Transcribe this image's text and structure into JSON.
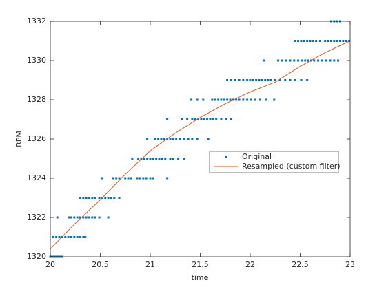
{
  "chart_data": {
    "type": "scatter",
    "xlabel": "time",
    "ylabel": "RPM",
    "xlim": [
      20,
      23
    ],
    "ylim": [
      1320,
      1332
    ],
    "xticks": [
      20,
      20.5,
      21,
      21.5,
      22,
      22.5,
      23
    ],
    "yticks": [
      1320,
      1322,
      1324,
      1326,
      1328,
      1330,
      1332
    ],
    "legend": "east",
    "series": [
      {
        "name": "Original",
        "type": "scatter",
        "color": "#0072BD",
        "x": [
          20.0,
          20.02,
          20.04,
          20.06,
          20.08,
          20.1,
          20.12,
          20.03,
          20.06,
          20.09,
          20.12,
          20.15,
          20.18,
          20.21,
          20.24,
          20.27,
          20.3,
          20.33,
          20.35,
          20.07,
          20.19,
          20.21,
          20.24,
          20.27,
          20.3,
          20.33,
          20.36,
          20.39,
          20.42,
          20.45,
          20.49,
          20.58,
          20.3,
          20.33,
          20.36,
          20.39,
          20.42,
          20.45,
          20.49,
          20.52,
          20.55,
          20.58,
          20.61,
          20.64,
          20.69,
          20.52,
          20.63,
          20.66,
          20.69,
          20.75,
          20.78,
          20.81,
          20.87,
          20.9,
          20.93,
          20.96,
          21.0,
          21.03,
          21.17,
          20.82,
          20.88,
          20.91,
          20.94,
          20.97,
          21.0,
          21.03,
          21.06,
          21.09,
          21.12,
          21.15,
          21.2,
          21.23,
          21.28,
          21.34,
          20.97,
          21.05,
          21.08,
          21.11,
          21.14,
          21.17,
          21.2,
          21.23,
          21.26,
          21.3,
          21.34,
          21.38,
          21.42,
          21.47,
          21.58,
          21.17,
          21.32,
          21.37,
          21.42,
          21.45,
          21.48,
          21.51,
          21.54,
          21.57,
          21.6,
          21.63,
          21.66,
          21.71,
          21.76,
          21.81,
          21.41,
          21.47,
          21.53,
          21.62,
          21.65,
          21.68,
          21.71,
          21.74,
          21.77,
          21.8,
          21.83,
          21.86,
          21.89,
          21.93,
          21.97,
          22.01,
          22.05,
          22.1,
          22.16,
          22.24,
          21.77,
          21.81,
          21.85,
          21.89,
          21.93,
          21.97,
          22.0,
          22.03,
          22.06,
          22.09,
          22.12,
          22.15,
          22.18,
          22.21,
          22.25,
          22.3,
          22.35,
          22.4,
          22.45,
          22.51,
          22.57,
          22.14,
          22.28,
          22.32,
          22.36,
          22.4,
          22.44,
          22.48,
          22.52,
          22.55,
          22.58,
          22.61,
          22.64,
          22.68,
          22.72,
          22.76,
          22.8,
          22.84,
          22.88,
          22.45,
          22.48,
          22.51,
          22.54,
          22.57,
          22.6,
          22.63,
          22.66,
          22.7,
          22.75,
          22.78,
          22.81,
          22.84,
          22.87,
          22.9,
          22.93,
          22.96,
          22.99,
          22.81,
          22.84,
          22.87,
          22.9
        ],
        "values": [
          1320,
          1320,
          1320,
          1320,
          1320,
          1320,
          1320,
          1321,
          1321,
          1321,
          1321,
          1321,
          1321,
          1321,
          1321,
          1321,
          1321,
          1321,
          1321,
          1322,
          1322,
          1322,
          1322,
          1322,
          1322,
          1322,
          1322,
          1322,
          1322,
          1322,
          1322,
          1322,
          1323,
          1323,
          1323,
          1323,
          1323,
          1323,
          1323,
          1323,
          1323,
          1323,
          1323,
          1323,
          1323,
          1324,
          1324,
          1324,
          1324,
          1324,
          1324,
          1324,
          1324,
          1324,
          1324,
          1324,
          1324,
          1324,
          1324,
          1325,
          1325,
          1325,
          1325,
          1325,
          1325,
          1325,
          1325,
          1325,
          1325,
          1325,
          1325,
          1325,
          1325,
          1325,
          1326,
          1326,
          1326,
          1326,
          1326,
          1326,
          1326,
          1326,
          1326,
          1326,
          1326,
          1326,
          1326,
          1326,
          1326,
          1327,
          1327,
          1327,
          1327,
          1327,
          1327,
          1327,
          1327,
          1327,
          1327,
          1327,
          1327,
          1327,
          1327,
          1327,
          1328,
          1328,
          1328,
          1328,
          1328,
          1328,
          1328,
          1328,
          1328,
          1328,
          1328,
          1328,
          1328,
          1328,
          1328,
          1328,
          1328,
          1328,
          1328,
          1328,
          1329,
          1329,
          1329,
          1329,
          1329,
          1329,
          1329,
          1329,
          1329,
          1329,
          1329,
          1329,
          1329,
          1329,
          1329,
          1329,
          1329,
          1329,
          1329,
          1329,
          1329,
          1330,
          1330,
          1330,
          1330,
          1330,
          1330,
          1330,
          1330,
          1330,
          1330,
          1330,
          1330,
          1330,
          1330,
          1330,
          1330,
          1330,
          1330,
          1331,
          1331,
          1331,
          1331,
          1331,
          1331,
          1331,
          1331,
          1331,
          1331,
          1331,
          1331,
          1331,
          1331,
          1331,
          1331,
          1331,
          1331,
          1332,
          1332,
          1332,
          1332
        ]
      },
      {
        "name": "Resampled (custom filter)",
        "type": "line",
        "color": "#D95319",
        "x": [
          20,
          20.25,
          20.5,
          20.75,
          21,
          21.25,
          21.5,
          21.75,
          22,
          22.25,
          22.5,
          22.75,
          23
        ],
        "values": [
          1320.4,
          1321.7,
          1322.9,
          1324.2,
          1325.4,
          1326.3,
          1327.1,
          1327.8,
          1328.4,
          1328.9,
          1329.7,
          1330.4,
          1331.0
        ]
      }
    ]
  }
}
